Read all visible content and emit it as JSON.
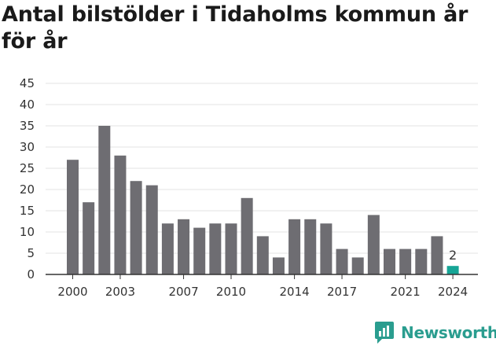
{
  "chart_data": {
    "type": "bar",
    "title": "Antal bilstölder i Tidaholms kommun år för år",
    "xlabel": "",
    "ylabel": "",
    "ylim": [
      0,
      45
    ],
    "yticks": [
      0,
      5,
      10,
      15,
      20,
      25,
      30,
      35,
      40,
      45
    ],
    "categories": [
      2000,
      2001,
      2002,
      2003,
      2004,
      2005,
      2006,
      2007,
      2008,
      2009,
      2010,
      2011,
      2012,
      2013,
      2014,
      2015,
      2016,
      2017,
      2018,
      2019,
      2020,
      2021,
      2022,
      2023,
      2024
    ],
    "values": [
      27,
      17,
      35,
      28,
      22,
      21,
      12,
      13,
      11,
      12,
      12,
      18,
      9,
      4,
      13,
      13,
      12,
      6,
      4,
      14,
      6,
      6,
      6,
      9,
      2
    ],
    "xtick_labels": [
      2000,
      2003,
      2007,
      2010,
      2014,
      2017,
      2021,
      2024
    ],
    "highlight": {
      "category": 2024,
      "label": "2"
    },
    "colors": {
      "bar": "#6e6d72",
      "highlight": "#16a596",
      "grid": "#e3e3e3",
      "axis": "#333333"
    },
    "grid": true,
    "legend": "none"
  },
  "brand": {
    "name": "Newsworthy",
    "icon": "newsworthy-logo-icon",
    "color": "#2a9d8f"
  }
}
